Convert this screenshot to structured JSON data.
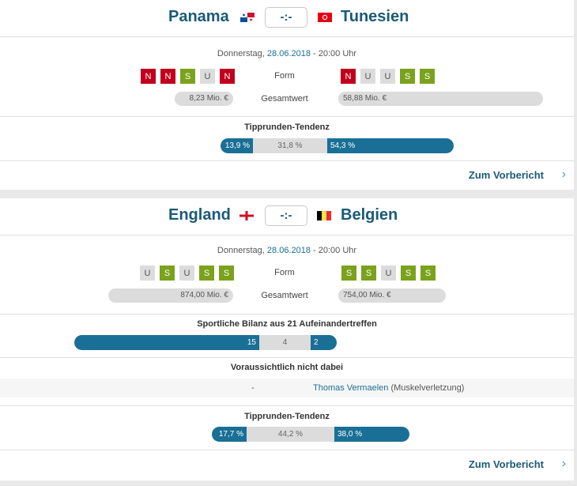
{
  "matches": [
    {
      "home": "Panama",
      "away": "Tunesien",
      "score": "-:-",
      "date_prefix": "Donnerstag,",
      "date": "28.06.2018",
      "time": "-  20:00 Uhr",
      "form_label": "Form",
      "home_form": [
        "N",
        "N",
        "S",
        "U",
        "N"
      ],
      "away_form": [
        "N",
        "U",
        "U",
        "S",
        "S"
      ],
      "value_label": "Gesamtwert",
      "home_value": "8,23 Mio. €",
      "away_value": "58,88 Mio. €",
      "tendency_title": "Tipprunden-Tendenz",
      "tendency": [
        "13,9 %",
        "31,8 %",
        "54,3 %"
      ],
      "tendency_values": [
        13.9,
        31.8,
        54.3
      ],
      "link": "Zum Vorbericht"
    },
    {
      "home": "England",
      "away": "Belgien",
      "score": "-:-",
      "date_prefix": "Donnerstag,",
      "date": "28.06.2018",
      "time": "-  20:00 Uhr",
      "form_label": "Form",
      "home_form": [
        "U",
        "S",
        "U",
        "S",
        "S"
      ],
      "away_form": [
        "S",
        "S",
        "U",
        "S",
        "S"
      ],
      "value_label": "Gesamtwert",
      "home_value": "874,00 Mio. €",
      "away_value": "754,00 Mio. €",
      "h2h_title": "Sportliche Bilanz aus 21 Aufeinandertreffen",
      "h2h": [
        "15",
        "4",
        "2"
      ],
      "absent_title": "Voraussichtlich nicht dabei",
      "absent_home": "-",
      "absent_away_name": "Thomas Vermaelen",
      "absent_away_reason": "(Muskelverletzung)",
      "tendency_title": "Tipprunden-Tendenz",
      "tendency": [
        "17,7 %",
        "44,2 %",
        "38,0 %"
      ],
      "tendency_values": [
        17.7,
        44.2,
        38.0
      ],
      "link": "Zum Vorbericht"
    }
  ],
  "colors": {
    "accent": "#1a6f96",
    "win": "#7aa21c",
    "loss": "#c0001c",
    "draw": "#dcdcdc"
  }
}
